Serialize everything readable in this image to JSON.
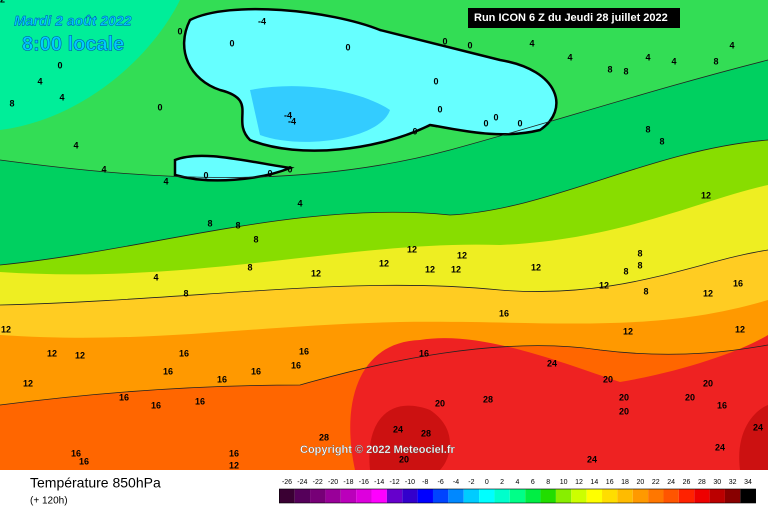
{
  "header": {
    "date": "Mardi 2 août 2022",
    "time": "8:00 locale",
    "run": "Run ICON 6 Z du Jeudi 28 juillet 2022"
  },
  "copyright": "Copyright © 2022 Meteociel.fr",
  "footer": {
    "title": "Température 850hPa",
    "lead": "(+ 120h)"
  },
  "colorbar": {
    "ticks": [
      -26,
      -24,
      -22,
      -20,
      -18,
      -16,
      -14,
      -12,
      -10,
      -8,
      -6,
      -4,
      -2,
      0,
      2,
      4,
      6,
      8,
      10,
      12,
      14,
      16,
      18,
      20,
      22,
      24,
      26,
      28,
      30,
      32,
      34
    ],
    "colors": [
      "#3a0033",
      "#55005a",
      "#770077",
      "#990099",
      "#bb00bb",
      "#dd00dd",
      "#ff00ff",
      "#6600cc",
      "#3300cc",
      "#0000ff",
      "#0044ff",
      "#0088ff",
      "#00ccff",
      "#00ffff",
      "#00ffcc",
      "#00ff88",
      "#00ee44",
      "#22dd00",
      "#88ee00",
      "#ccff00",
      "#ffff00",
      "#ffdd00",
      "#ffbb00",
      "#ff9900",
      "#ff7700",
      "#ff5500",
      "#ff2200",
      "#ee0000",
      "#bb0000",
      "#880000",
      "#000000"
    ]
  },
  "contour_labels": [
    0,
    0,
    -4,
    0,
    0,
    0,
    4,
    4,
    8,
    8,
    4,
    4,
    8,
    4,
    0,
    4,
    4,
    8,
    0,
    -4,
    -4,
    0,
    0,
    0,
    0,
    0,
    0,
    8,
    8,
    4,
    4,
    4,
    0,
    0,
    0,
    4,
    8,
    8,
    8,
    8,
    4,
    8,
    12,
    12,
    12,
    12,
    12,
    12,
    12,
    8,
    8,
    8,
    8,
    12,
    12,
    16,
    12,
    12,
    12,
    16,
    12,
    12,
    12,
    12,
    16,
    16,
    16,
    16,
    16,
    16,
    16,
    16,
    16,
    16,
    24,
    20,
    20,
    20,
    20,
    20,
    16,
    24,
    28,
    20,
    24,
    28,
    28,
    20,
    24,
    24,
    16,
    16,
    16,
    12,
    12
  ]
}
